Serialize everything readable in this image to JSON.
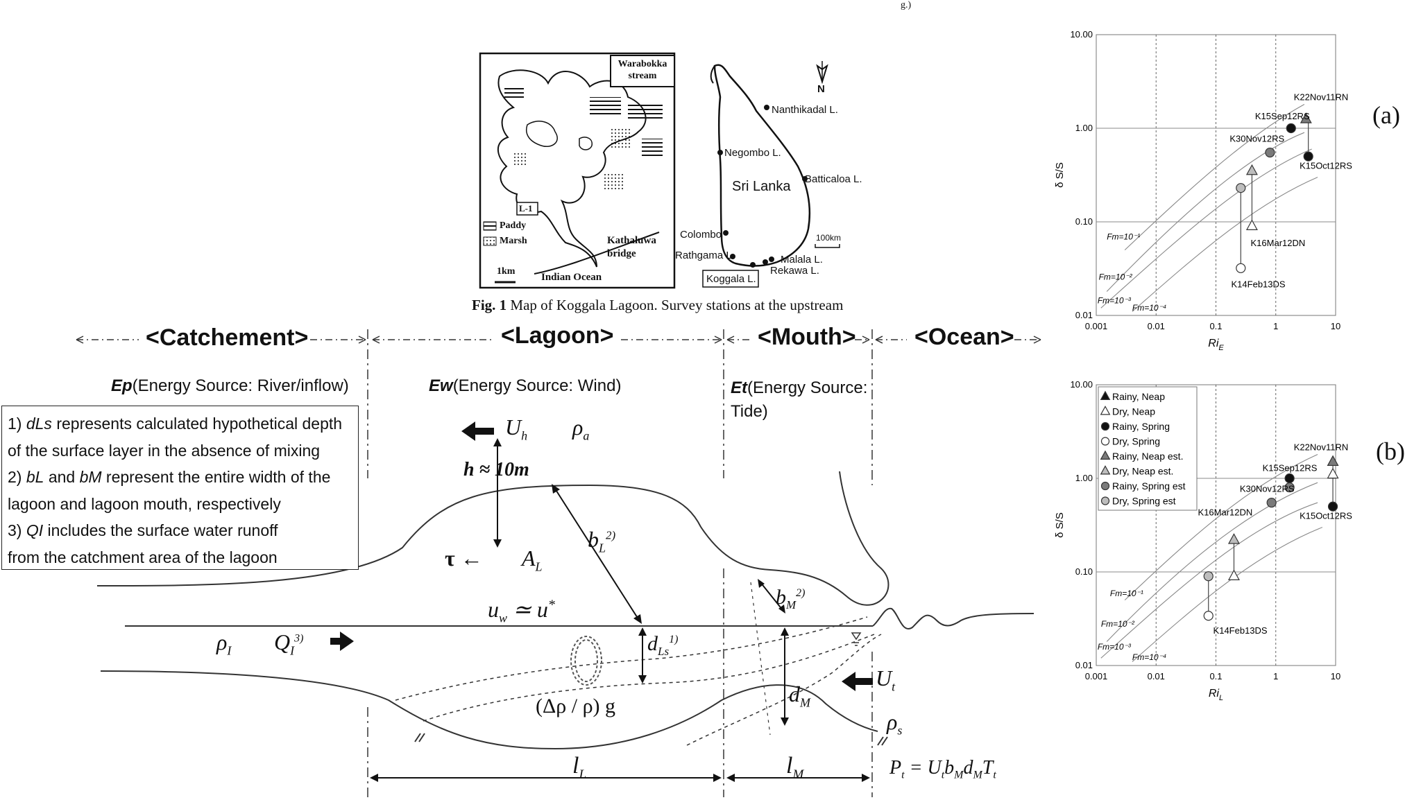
{
  "top_cut_text": "g.)",
  "fig1": {
    "caption_bold": "Fig. 1",
    "caption_rest": " Map of Koggala Lagoon. Survey stations at the upstream",
    "inset": {
      "warabokka": [
        "Warabokka",
        "stream"
      ],
      "station": "L-1",
      "legend_paddy": "Paddy",
      "legend_marsh": "Marsh",
      "kathaluwa": [
        "Kathaluwa",
        "bridge"
      ],
      "scale": "1km",
      "ocean": "Indian Ocean"
    },
    "srilanka": {
      "name": "Sri Lanka",
      "north": "N",
      "scale": "100km",
      "places": [
        "Nanthikadal L.",
        "Negombo L.",
        "Batticaloa L.",
        "Colombo",
        "Rathgama L.",
        "Malala L.",
        "Rekawa L.",
        "Koggala L."
      ]
    }
  },
  "schematic": {
    "regions": [
      "<Catchement>",
      "<Lagoon>",
      "<Mouth>",
      "<Ocean>"
    ],
    "energy": [
      {
        "sym": "Ep",
        "text": "(Energy Source: River/inflow)"
      },
      {
        "sym": "Ew",
        "text": "(Energy Source: Wind)"
      },
      {
        "sym": "Et",
        "text": "(Energy Source:",
        "text2": "Tide)"
      }
    ],
    "notes": [
      {
        "num": "1) ",
        "sym": "dLs",
        "text": " represents calculated hypothetical depth"
      },
      {
        "num": "",
        "sym": "",
        "text": "of the surface layer in the absence of mixing"
      },
      {
        "num": "2) ",
        "sym": "bL",
        "text": " and ",
        "sym2": "bM",
        "text2": " represent the entire width of the"
      },
      {
        "num": "",
        "sym": "",
        "text": "lagoon and lagoon mouth, respectively"
      },
      {
        "num": "3) ",
        "sym": "QI",
        "text": " includes the surface water runoff"
      },
      {
        "num": "",
        "sym": "",
        "text": "from the catchment area of the lagoon"
      }
    ],
    "symbols": {
      "Uh": "U",
      "Uh_sub": "h",
      "rho_a": "ρ",
      "rho_a_sub": "a",
      "h": "h ≈ 10m",
      "bL": "b",
      "bL_sub": "L",
      "bL_sup": "2)",
      "tau": "τ ←",
      "AL": "A",
      "AL_sub": "L",
      "uw": "u",
      "uw_sub": "w",
      "uw_rest": " ≃ u",
      "uw_sup": "*",
      "bM": "b",
      "bM_sub": "M",
      "bM_sup": "2)",
      "rhoI": "ρ",
      "rhoI_sub": "I",
      "QI": "Q",
      "QI_sub": "I",
      "QI_sup": "3)",
      "dLs": "d",
      "dLs_sub": "Ls",
      "dLs_sup": "1)",
      "Ut": "U",
      "Ut_sub": "t",
      "dM": "d",
      "dM_sub": "M",
      "drho": "(Δρ / ρ) g",
      "rhoS": "ρ",
      "rhoS_sub": "s",
      "lL": "l",
      "lL_sub": "L",
      "lM": "l",
      "lM_sub": "M",
      "Pt": "P",
      "Pt_sub": "t",
      "Pt_rest": " = U",
      "Pt_eq": [
        "t",
        "b",
        "M",
        "d",
        "M",
        "T",
        "t"
      ]
    }
  },
  "panel_labels": [
    "(a)",
    "(b)"
  ],
  "colors": {
    "filled": "#111111",
    "gray": "#7a7a7a",
    "light": "#bdbdbd",
    "line": "#555555"
  },
  "chart_data": [
    {
      "type": "scatter",
      "panel": "(a)",
      "xscale": "log",
      "yscale": "log",
      "xlim": [
        0.001,
        10
      ],
      "ylim": [
        0.01,
        10
      ],
      "xticks": [
        "0.001",
        "0.01",
        "0.1",
        "1",
        "10"
      ],
      "yticks": [
        "0.01",
        "0.10",
        "1.00",
        "10.00"
      ],
      "xlabel": "Ri",
      "xlabel_sub": "E",
      "ylabel": "δ S/S",
      "grid": true,
      "fm_lines": [
        {
          "label": "Fm=10⁻¹",
          "y_at_x": [
            [
              0.003,
              0.05
            ],
            [
              2.0,
              2.0
            ]
          ]
        },
        {
          "label": "Fm=10⁻²",
          "y_at_x": [
            [
              0.0015,
              0.02
            ],
            [
              3.0,
              1.0
            ]
          ]
        },
        {
          "label": "Fm=10⁻³",
          "y_at_x": [
            [
              0.0012,
              0.013
            ],
            [
              4.0,
              0.6
            ]
          ]
        },
        {
          "label": "Fm=10⁻⁴",
          "y_at_x": [
            [
              0.004,
              0.012
            ],
            [
              5.0,
              0.3
            ]
          ]
        }
      ],
      "points": [
        {
          "label": "K22Nov11RN",
          "series": "Rainy, Neap est.",
          "x": 3.2,
          "y": 1.25,
          "est": {
            "x": 3.2,
            "y": 1.25
          }
        },
        {
          "label": "K15Sep12RS",
          "series": "Rainy, Spring",
          "x": 1.8,
          "y": 1.0
        },
        {
          "label": "K15Oct12RS",
          "series": "Rainy, Spring",
          "x": 3.5,
          "y": 0.5
        },
        {
          "label": "K30Nov12RS",
          "series": "Rainy, Spring est.",
          "x": 0.8,
          "y": 0.55
        },
        {
          "label": "K16Mar12DN",
          "series": "Dry, Neap",
          "x": 0.4,
          "y": 0.09
        },
        {
          "label": "K16Mar12DN est.",
          "series": "Dry, Neap est.",
          "x": 0.4,
          "y": 0.35
        },
        {
          "label": "K14Feb13DS",
          "series": "Dry, Spring",
          "x": 0.26,
          "y": 0.032
        },
        {
          "label": "K14Feb13DS est.",
          "series": "Dry, Spring est.",
          "x": 0.26,
          "y": 0.23
        }
      ],
      "point_labels": [
        "K22Nov11RN",
        "K15Sep12RS",
        "K30Nov12RS",
        "K15Oct12RS",
        "K16Mar12DN",
        "K14Feb13DS"
      ]
    },
    {
      "type": "scatter",
      "panel": "(b)",
      "xscale": "log",
      "yscale": "log",
      "xlim": [
        0.001,
        10
      ],
      "ylim": [
        0.01,
        10
      ],
      "xticks": [
        "0.001",
        "0.01",
        "0.1",
        "1",
        "10"
      ],
      "yticks": [
        "0.01",
        "0.10",
        "1.00",
        "10.00"
      ],
      "xlabel": "Ri",
      "xlabel_sub": "L",
      "ylabel": "δ S/S",
      "grid": true,
      "legend": [
        {
          "name": "Rainy, Neap",
          "marker": "triangle",
          "fill": "filled"
        },
        {
          "name": "Dry, Neap",
          "marker": "triangle",
          "fill": "open"
        },
        {
          "name": "Rainy, Spring",
          "marker": "circle",
          "fill": "filled"
        },
        {
          "name": "Dry, Spring",
          "marker": "circle",
          "fill": "open"
        },
        {
          "name": "Rainy, Neap est.",
          "marker": "triangle",
          "fill": "gray"
        },
        {
          "name": "Dry, Neap est.",
          "marker": "triangle",
          "fill": "light"
        },
        {
          "name": "Rainy, Spring est",
          "marker": "circle",
          "fill": "gray"
        },
        {
          "name": "Dry, Spring est",
          "marker": "circle",
          "fill": "light"
        }
      ],
      "legend_placement": "top-left",
      "points": [
        {
          "label": "K22Nov11RN",
          "series": "Rainy, Neap est.",
          "x": 9.0,
          "y": 1.5
        },
        {
          "label": "K22Nov11RN obs",
          "series": "Dry, Neap",
          "x": 9.0,
          "y": 1.1
        },
        {
          "label": "K15Sep12RS",
          "series": "Rainy, Spring",
          "x": 1.7,
          "y": 1.0
        },
        {
          "label": "K15Sep12RS est",
          "series": "Rainy, Spring est",
          "x": 1.7,
          "y": 0.8
        },
        {
          "label": "K15Oct12RS",
          "series": "Rainy, Spring",
          "x": 9.0,
          "y": 0.5
        },
        {
          "label": "K30Nov12RS",
          "series": "Rainy, Spring est",
          "x": 0.85,
          "y": 0.55
        },
        {
          "label": "K16Mar12DN",
          "series": "Dry, Neap est.",
          "x": 0.2,
          "y": 0.22
        },
        {
          "label": "K16Mar12DN obs",
          "series": "Dry, Neap",
          "x": 0.2,
          "y": 0.09
        },
        {
          "label": "K14Feb13DS",
          "series": "Dry, Spring",
          "x": 0.075,
          "y": 0.034
        },
        {
          "label": "K14Feb13DS est",
          "series": "Dry, Spring est",
          "x": 0.075,
          "y": 0.09
        }
      ],
      "point_labels": [
        "K22Nov11RN",
        "K15Sep12RS",
        "K30Nov12RS",
        "K15Oct12RS",
        "K16Mar12DN",
        "K14Feb13DS"
      ],
      "fm_labels": [
        "Fm=10⁻¹",
        "Fm=10⁻²",
        "Fm=10⁻³",
        "Fm=10⁻⁴"
      ]
    }
  ]
}
